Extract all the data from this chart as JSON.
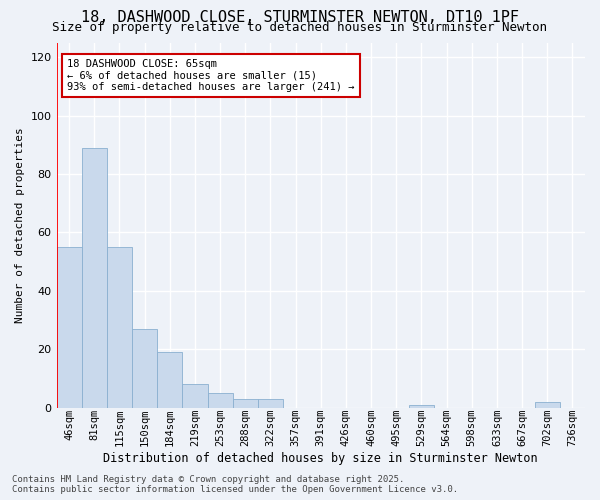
{
  "title": "18, DASHWOOD CLOSE, STURMINSTER NEWTON, DT10 1PF",
  "subtitle": "Size of property relative to detached houses in Sturminster Newton",
  "xlabel": "Distribution of detached houses by size in Sturminster Newton",
  "ylabel": "Number of detached properties",
  "bar_labels": [
    "46sqm",
    "81sqm",
    "115sqm",
    "150sqm",
    "184sqm",
    "219sqm",
    "253sqm",
    "288sqm",
    "322sqm",
    "357sqm",
    "391sqm",
    "426sqm",
    "460sqm",
    "495sqm",
    "529sqm",
    "564sqm",
    "598sqm",
    "633sqm",
    "667sqm",
    "702sqm",
    "736sqm"
  ],
  "bar_values": [
    55,
    89,
    55,
    27,
    19,
    8,
    5,
    3,
    3,
    0,
    0,
    0,
    0,
    0,
    1,
    0,
    0,
    0,
    0,
    2,
    0
  ],
  "bar_color": "#c9d9ec",
  "bar_edge_color": "#8ab0d0",
  "background_color": "#eef2f8",
  "grid_color": "#ffffff",
  "annotation_text": "18 DASHWOOD CLOSE: 65sqm\n← 6% of detached houses are smaller (15)\n93% of semi-detached houses are larger (241) →",
  "annotation_box_color": "#ffffff",
  "annotation_box_edge": "#cc0000",
  "footer_text": "Contains HM Land Registry data © Crown copyright and database right 2025.\nContains public sector information licensed under the Open Government Licence v3.0.",
  "ylim_max": 125,
  "yticks": [
    0,
    20,
    40,
    60,
    80,
    100,
    120
  ],
  "title_fontsize": 11,
  "subtitle_fontsize": 9,
  "ylabel_fontsize": 8,
  "xlabel_fontsize": 8.5,
  "tick_fontsize": 7.5,
  "annot_fontsize": 7.5,
  "footer_fontsize": 6.5
}
